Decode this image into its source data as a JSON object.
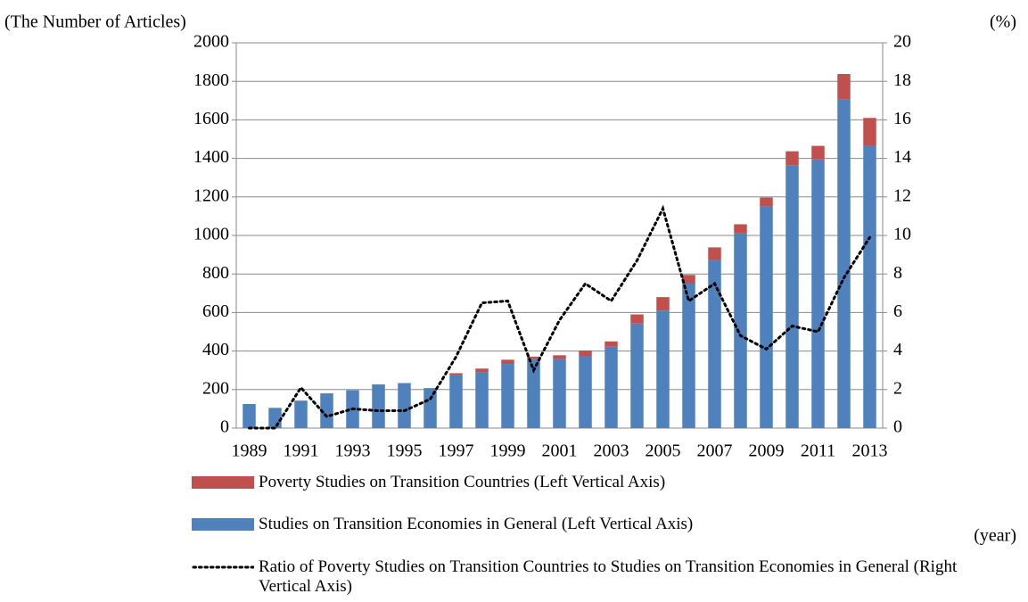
{
  "chart_data": {
    "type": "stacked-bar-line",
    "ylabel": "(The Number of Articles)",
    "y2label": "(%)",
    "xlabel": "(year)",
    "categories": [
      "1989",
      null,
      "1991",
      null,
      "1993",
      null,
      "1995",
      null,
      "1997",
      null,
      "1999",
      null,
      "2001",
      null,
      "2003",
      null,
      "2005",
      null,
      "2007",
      null,
      "2009",
      null,
      "2011",
      null,
      "2013"
    ],
    "series": [
      {
        "name": "Poverty Studies on Transition Countries (Left Vertical Axis)",
        "color": "#c0504d",
        "kind": "bar",
        "values": [
          0,
          0,
          3,
          1,
          2,
          2,
          2,
          3,
          10,
          19,
          22,
          11,
          20,
          28,
          28,
          47,
          70,
          45,
          65,
          48,
          47,
          72,
          70,
          133,
          145
        ]
      },
      {
        "name": "Studies on Transition Economies in General (Left Vertical Axis)",
        "color": "#4f81bd",
        "kind": "bar",
        "values": [
          125,
          105,
          140,
          180,
          195,
          225,
          232,
          205,
          275,
          290,
          333,
          360,
          358,
          375,
          422,
          543,
          610,
          750,
          873,
          1010,
          1150,
          1365,
          1395,
          1705,
          1465
        ]
      },
      {
        "name": "Ratio of Poverty Studies on Transition Countries to Studies on Transition Economies in General (Right Vertical Axis)",
        "color": "#000000",
        "kind": "line",
        "axis": "y2",
        "values": [
          0,
          0,
          2.1,
          0.6,
          1.0,
          0.9,
          0.9,
          1.5,
          3.7,
          6.5,
          6.6,
          3.0,
          5.6,
          7.5,
          6.6,
          8.7,
          11.4,
          6.6,
          7.5,
          4.8,
          4.1,
          5.3,
          5.0,
          7.8,
          9.9
        ]
      }
    ],
    "ylim": [
      0,
      2000
    ],
    "yticks": [
      0,
      200,
      400,
      600,
      800,
      1000,
      1200,
      1400,
      1600,
      1800,
      2000
    ],
    "y2lim": [
      0,
      20
    ],
    "y2ticks": [
      0,
      2,
      4,
      6,
      8,
      10,
      12,
      14,
      16,
      18,
      20
    ],
    "grid": true
  }
}
